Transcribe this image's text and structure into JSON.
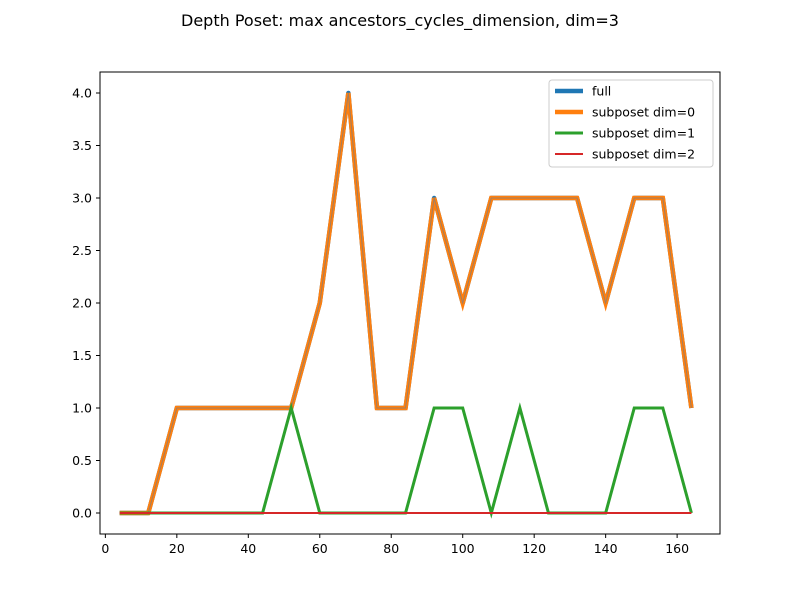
{
  "chart_data": {
    "type": "line",
    "title": "Depth Poset: max ancestors_cycles_dimension, dim=3",
    "xlabel": "",
    "ylabel": "",
    "xlim": [
      -1.5,
      172
    ],
    "ylim": [
      -0.2,
      4.2
    ],
    "xticks": [
      0,
      20,
      40,
      60,
      80,
      100,
      120,
      140,
      160
    ],
    "xtick_labels": [
      "0",
      "20",
      "40",
      "60",
      "80",
      "100",
      "120",
      "140",
      "160"
    ],
    "yticks": [
      0.0,
      0.5,
      1.0,
      1.5,
      2.0,
      2.5,
      3.0,
      3.5,
      4.0
    ],
    "ytick_labels": [
      "0.0",
      "0.5",
      "1.0",
      "1.5",
      "2.0",
      "2.5",
      "3.0",
      "3.5",
      "4.0"
    ],
    "grid": false,
    "legend_position": "top-right",
    "series": [
      {
        "name": "full",
        "color": "#1f77b4",
        "x": [
          4,
          12,
          20,
          28,
          36,
          44,
          52,
          60,
          68,
          76,
          84,
          92,
          100,
          108,
          116,
          124,
          132,
          140,
          148,
          156,
          164
        ],
        "y": [
          0,
          0,
          1,
          1,
          1,
          1,
          1,
          2,
          4,
          1,
          1,
          3,
          2,
          3,
          3,
          3,
          3,
          2,
          3,
          3,
          1
        ]
      },
      {
        "name": "subposet dim=0",
        "color": "#ff7f0e",
        "x": [
          4,
          12,
          20,
          28,
          36,
          44,
          52,
          60,
          68,
          76,
          84,
          92,
          100,
          108,
          116,
          124,
          132,
          140,
          148,
          156,
          164
        ],
        "y": [
          0,
          0,
          1,
          1,
          1,
          1,
          1,
          2,
          4,
          1,
          1,
          3,
          2,
          3,
          3,
          3,
          3,
          2,
          3,
          3,
          1
        ]
      },
      {
        "name": "subposet dim=1",
        "color": "#2ca02c",
        "x": [
          4,
          12,
          20,
          28,
          36,
          44,
          52,
          60,
          68,
          76,
          84,
          92,
          100,
          108,
          116,
          124,
          132,
          140,
          148,
          156,
          164
        ],
        "y": [
          0,
          0,
          0,
          0,
          0,
          0,
          1,
          0,
          0,
          0,
          0,
          1,
          1,
          0,
          1,
          0,
          0,
          0,
          1,
          1,
          0
        ]
      },
      {
        "name": "subposet dim=2",
        "color": "#d62728",
        "x": [
          4,
          12,
          20,
          28,
          36,
          44,
          52,
          60,
          68,
          76,
          84,
          92,
          100,
          108,
          116,
          124,
          132,
          140,
          148,
          156,
          164
        ],
        "y": [
          0,
          0,
          0,
          0,
          0,
          0,
          0,
          0,
          0,
          0,
          0,
          0,
          0,
          0,
          0,
          0,
          0,
          0,
          0,
          0,
          0
        ]
      }
    ]
  }
}
